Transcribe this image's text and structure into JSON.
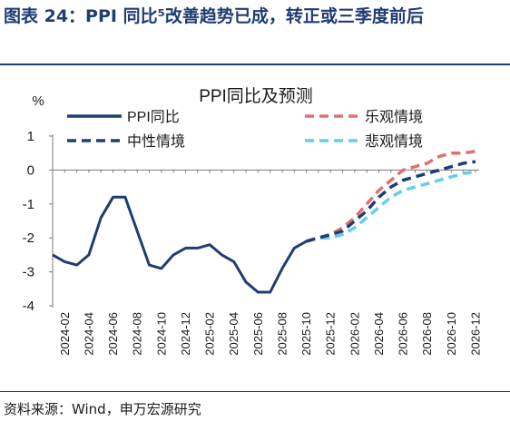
{
  "figure": {
    "title": "图表 24：PPI 同比⁵改善趋势已成，转正或三季度前后",
    "source": "资料来源：Wind，申万宏源研究"
  },
  "chart_data": {
    "type": "line",
    "title": "PPI同比及预测",
    "ylabel": "%",
    "xlabel": "",
    "ylim": [
      -4,
      1
    ],
    "yticks": [
      1,
      0,
      -1,
      -2,
      -3,
      -4
    ],
    "grid": false,
    "legend_position": "top",
    "xtick_labels": [
      "2024-02",
      "2024-04",
      "2024-06",
      "2024-08",
      "2024-10",
      "2024-12",
      "2025-02",
      "2025-04",
      "2025-06",
      "2025-08",
      "2025-10",
      "2025-12",
      "2026-02",
      "2026-04",
      "2026-06",
      "2026-08",
      "2026-10",
      "2026-12"
    ],
    "x": [
      "2024-01",
      "2024-02",
      "2024-03",
      "2024-04",
      "2024-05",
      "2024-06",
      "2024-07",
      "2024-08",
      "2024-09",
      "2024-10",
      "2024-11",
      "2024-12",
      "2025-01",
      "2025-02",
      "2025-03",
      "2025-04",
      "2025-05",
      "2025-06",
      "2025-07",
      "2025-08",
      "2025-09",
      "2025-10",
      "2025-11",
      "2025-12",
      "2026-01",
      "2026-02",
      "2026-03",
      "2026-04",
      "2026-05",
      "2026-06",
      "2026-07",
      "2026-08",
      "2026-09",
      "2026-10",
      "2026-11",
      "2026-12"
    ],
    "series": [
      {
        "name": "PPI同比",
        "color": "#1f3d73",
        "style": "solid",
        "values": [
          -2.5,
          -2.7,
          -2.8,
          -2.5,
          -1.4,
          -0.8,
          -0.8,
          -1.8,
          -2.8,
          -2.9,
          -2.5,
          -2.3,
          -2.3,
          -2.2,
          -2.5,
          -2.7,
          -3.3,
          -3.6,
          -3.6,
          -2.9,
          -2.3,
          -2.1,
          null,
          null,
          null,
          null,
          null,
          null,
          null,
          null,
          null,
          null,
          null,
          null,
          null,
          null
        ]
      },
      {
        "name": "乐观情境",
        "color": "#e07070",
        "style": "dashed",
        "values": [
          null,
          null,
          null,
          null,
          null,
          null,
          null,
          null,
          null,
          null,
          null,
          null,
          null,
          null,
          null,
          null,
          null,
          null,
          null,
          null,
          null,
          -2.1,
          -2.0,
          -1.9,
          -1.7,
          -1.4,
          -1.0,
          -0.6,
          -0.3,
          0.0,
          0.1,
          0.2,
          0.4,
          0.5,
          0.5,
          0.55
        ]
      },
      {
        "name": "中性情境",
        "color": "#1f3d73",
        "style": "dashed",
        "values": [
          null,
          null,
          null,
          null,
          null,
          null,
          null,
          null,
          null,
          null,
          null,
          null,
          null,
          null,
          null,
          null,
          null,
          null,
          null,
          null,
          null,
          -2.1,
          -2.0,
          -1.9,
          -1.8,
          -1.5,
          -1.2,
          -0.8,
          -0.5,
          -0.3,
          -0.2,
          -0.1,
          0.0,
          0.1,
          0.2,
          0.25
        ]
      },
      {
        "name": "悲观情境",
        "color": "#66ccee",
        "style": "dashed",
        "values": [
          null,
          null,
          null,
          null,
          null,
          null,
          null,
          null,
          null,
          null,
          null,
          null,
          null,
          null,
          null,
          null,
          null,
          null,
          null,
          null,
          null,
          -2.1,
          -2.0,
          -2.0,
          -1.9,
          -1.7,
          -1.4,
          -1.1,
          -0.8,
          -0.6,
          -0.5,
          -0.4,
          -0.3,
          -0.2,
          -0.1,
          -0.05
        ]
      }
    ]
  }
}
